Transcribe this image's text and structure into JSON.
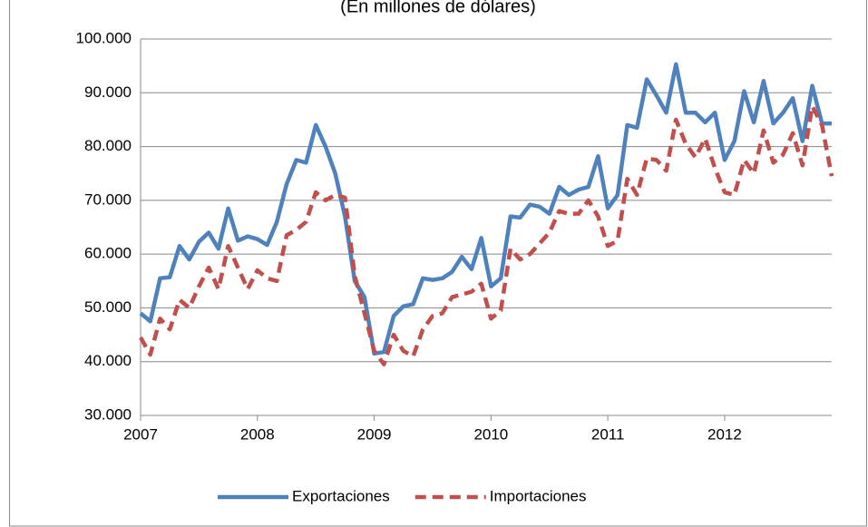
{
  "chart_data": {
    "type": "line",
    "subtitle": "(En millones de dólares)",
    "categories": [
      "2007",
      null,
      null,
      null,
      null,
      null,
      null,
      null,
      null,
      null,
      null,
      null,
      "2008",
      null,
      null,
      null,
      null,
      null,
      null,
      null,
      null,
      null,
      null,
      null,
      "2009",
      null,
      null,
      null,
      null,
      null,
      null,
      null,
      null,
      null,
      null,
      null,
      "2010",
      null,
      null,
      null,
      null,
      null,
      null,
      null,
      null,
      null,
      null,
      null,
      "2011",
      null,
      null,
      null,
      null,
      null,
      null,
      null,
      null,
      null,
      null,
      null,
      "2012",
      null,
      null,
      null,
      null,
      null,
      null,
      null,
      null,
      null,
      null,
      null
    ],
    "series": [
      {
        "name": "Exportaciones",
        "color": "#4f81bd",
        "dash": false,
        "values": [
          49000,
          47500,
          55500,
          55700,
          61500,
          59000,
          62300,
          64000,
          61000,
          68500,
          62500,
          63300,
          62800,
          61700,
          66000,
          73000,
          77500,
          77000,
          84000,
          80000,
          75000,
          67000,
          55000,
          52000,
          41500,
          41800,
          48500,
          50300,
          50700,
          55500,
          55200,
          55500,
          56700,
          59500,
          57200,
          63000,
          54000,
          55500,
          67000,
          66800,
          69200,
          68800,
          67500,
          72500,
          71000,
          72000,
          72500,
          78200,
          68500,
          71000,
          84000,
          83500,
          92500,
          89500,
          86300,
          95300,
          86300,
          86300,
          84500,
          86300,
          77500,
          81000,
          90300,
          84500,
          92200,
          84300,
          86300,
          89000,
          81000,
          91300,
          84300,
          84300
        ]
      },
      {
        "name": "Importaciones",
        "color": "#c0504d",
        "dash": true,
        "values": [
          44500,
          41300,
          48000,
          46000,
          51500,
          50000,
          54000,
          57500,
          53500,
          61500,
          57500,
          53500,
          57000,
          55500,
          55000,
          63500,
          64500,
          66000,
          71500,
          70000,
          71000,
          70500,
          56000,
          49000,
          42000,
          39500,
          45000,
          42000,
          41000,
          46000,
          48500,
          49000,
          52000,
          52500,
          53000,
          54500,
          48000,
          49500,
          61000,
          59000,
          60000,
          62000,
          64000,
          68000,
          67500,
          67500,
          70000,
          67000,
          61500,
          62500,
          74000,
          71000,
          77800,
          77500,
          75500,
          85000,
          80500,
          78000,
          81500,
          76000,
          71500,
          71000,
          77500,
          75000,
          83000,
          77000,
          78500,
          82500,
          76500,
          87500,
          84000,
          74500
        ]
      }
    ],
    "ylim": [
      30000,
      100000
    ],
    "yticks": [
      {
        "value": 30000,
        "label": "30.000"
      },
      {
        "value": 40000,
        "label": "40.000"
      },
      {
        "value": 50000,
        "label": "50.000"
      },
      {
        "value": 60000,
        "label": "60.000"
      },
      {
        "value": 70000,
        "label": "70.000"
      },
      {
        "value": 80000,
        "label": "80.000"
      },
      {
        "value": 90000,
        "label": "90.000"
      },
      {
        "value": 100000,
        "label": "100.000"
      }
    ],
    "grid": true,
    "legend": "bottom"
  }
}
